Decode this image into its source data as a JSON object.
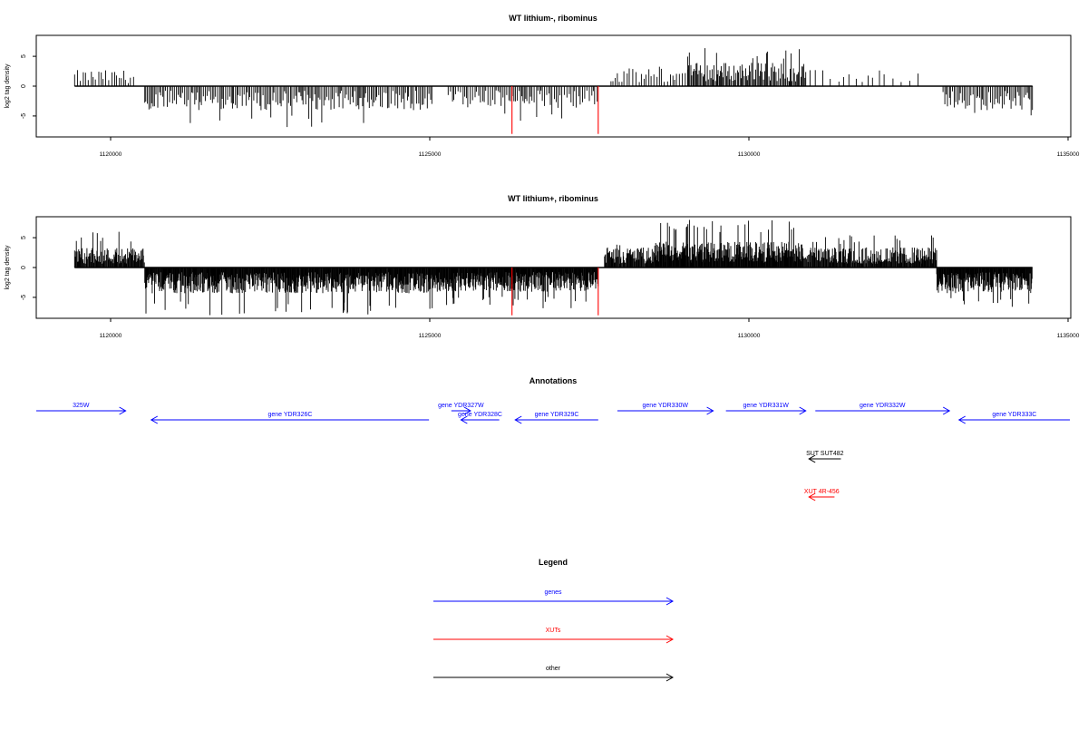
{
  "chart_data": [
    {
      "type": "bar",
      "title": "WT lithium-, ribominus",
      "xlabel": "",
      "ylabel": "log2 tag density",
      "xlim": [
        1118800,
        1135000
      ],
      "ylim": [
        -8.5,
        8.5
      ],
      "xticks": [
        "1120000",
        "1125000",
        "1130000",
        "1135000"
      ],
      "yticks": [
        "-5",
        "0",
        "5"
      ],
      "baseline": {
        "from": 1119400,
        "to": 1134400,
        "value": 0
      },
      "markers": [
        {
          "x": 1126250,
          "value": -8,
          "color": "#ff0000"
        },
        {
          "x": 1127600,
          "value": -8,
          "color": "#ff0000"
        }
      ],
      "density_profile": [
        {
          "from": 1119400,
          "to": 1120350,
          "sign": 1,
          "mean": 2.0,
          "max": 4.5,
          "spacing": 40
        },
        {
          "from": 1120500,
          "to": 1125000,
          "sign": -1,
          "mean": 3.0,
          "max": 7.0,
          "spacing": 25
        },
        {
          "from": 1125250,
          "to": 1127600,
          "sign": -1,
          "mean": 2.8,
          "max": 6.0,
          "spacing": 30
        },
        {
          "from": 1127800,
          "to": 1129000,
          "sign": 1,
          "mean": 2.2,
          "max": 3.5,
          "spacing": 40
        },
        {
          "from": 1129000,
          "to": 1130850,
          "sign": 1,
          "mean": 3.0,
          "max": 6.5,
          "spacing": 18
        },
        {
          "from": 1130850,
          "to": 1132700,
          "sign": 1,
          "mean": 2.0,
          "max": 3.0,
          "spacing": 100
        },
        {
          "from": 1133000,
          "to": 1134400,
          "sign": -1,
          "mean": 3.0,
          "max": 5.0,
          "spacing": 25
        }
      ]
    },
    {
      "type": "bar",
      "title": "WT lithium+, ribominus",
      "xlabel": "",
      "ylabel": "log2 tag density",
      "xlim": [
        1118800,
        1135000
      ],
      "ylim": [
        -8.5,
        8.5
      ],
      "xticks": [
        "1120000",
        "1125000",
        "1130000",
        "1135000"
      ],
      "yticks": [
        "-5",
        "0",
        "5"
      ],
      "baseline": {
        "from": 1119400,
        "to": 1134400,
        "value": 0
      },
      "markers": [
        {
          "x": 1126250,
          "value": -8,
          "color": "#ff0000"
        },
        {
          "x": 1127600,
          "value": -8,
          "color": "#ff0000"
        }
      ],
      "density_profile": [
        {
          "from": 1119400,
          "to": 1120500,
          "sign": 1,
          "mean": 2.5,
          "max": 6.0,
          "spacing": 10
        },
        {
          "from": 1120500,
          "to": 1125000,
          "sign": -1,
          "mean": 3.2,
          "max": 8.0,
          "spacing": 8
        },
        {
          "from": 1125000,
          "to": 1127600,
          "sign": -1,
          "mean": 3.0,
          "max": 7.0,
          "spacing": 8
        },
        {
          "from": 1127700,
          "to": 1128500,
          "sign": 1,
          "mean": 2.5,
          "max": 4.0,
          "spacing": 10
        },
        {
          "from": 1128500,
          "to": 1130800,
          "sign": 1,
          "mean": 3.2,
          "max": 8.0,
          "spacing": 8
        },
        {
          "from": 1130800,
          "to": 1132900,
          "sign": 1,
          "mean": 2.5,
          "max": 5.5,
          "spacing": 10
        },
        {
          "from": 1132900,
          "to": 1134400,
          "sign": -1,
          "mean": 3.2,
          "max": 7.0,
          "spacing": 8
        }
      ]
    }
  ],
  "annotations": {
    "title": "Annotations",
    "features": [
      {
        "label": "325W",
        "kind": "gene",
        "strand": "+",
        "start": 1118800,
        "end": 1120200,
        "row": 0
      },
      {
        "label": "gene YDR326C",
        "kind": "gene",
        "strand": "-",
        "start": 1120600,
        "end": 1124950,
        "row": 1
      },
      {
        "label": "gene YDR327W",
        "kind": "gene",
        "strand": "+",
        "start": 1125300,
        "end": 1125600,
        "row": 0
      },
      {
        "label": "gene YDR328C",
        "kind": "gene",
        "strand": "-",
        "start": 1125450,
        "end": 1126050,
        "row": 1
      },
      {
        "label": "gene YDR329C",
        "kind": "gene",
        "strand": "-",
        "start": 1126300,
        "end": 1127600,
        "row": 1
      },
      {
        "label": "gene YDR330W",
        "kind": "gene",
        "strand": "+",
        "start": 1127900,
        "end": 1129400,
        "row": 0
      },
      {
        "label": "gene YDR331W",
        "kind": "gene",
        "strand": "+",
        "start": 1129600,
        "end": 1130850,
        "row": 0
      },
      {
        "label": "gene YDR332W",
        "kind": "gene",
        "strand": "+",
        "start": 1131000,
        "end": 1133100,
        "row": 0
      },
      {
        "label": "gene YDR333C",
        "kind": "gene",
        "strand": "-",
        "start": 1133250,
        "end": 1135000,
        "row": 1
      },
      {
        "label": "SUT SUT482",
        "kind": "other",
        "strand": "-",
        "start": 1130900,
        "end": 1131400,
        "row": 2
      },
      {
        "label": "XUT 4R-456",
        "kind": "XUT",
        "strand": "-",
        "start": 1130900,
        "end": 1131300,
        "row": 3
      }
    ]
  },
  "legend": {
    "title": "Legend",
    "items": [
      {
        "label": "genes",
        "color": "#0000ff"
      },
      {
        "label": "XUTs",
        "color": "#ff0000"
      },
      {
        "label": "other",
        "color": "#000000"
      }
    ]
  },
  "colors": {
    "gene": "#0000ff",
    "XUT": "#ff0000",
    "other": "#000000"
  }
}
